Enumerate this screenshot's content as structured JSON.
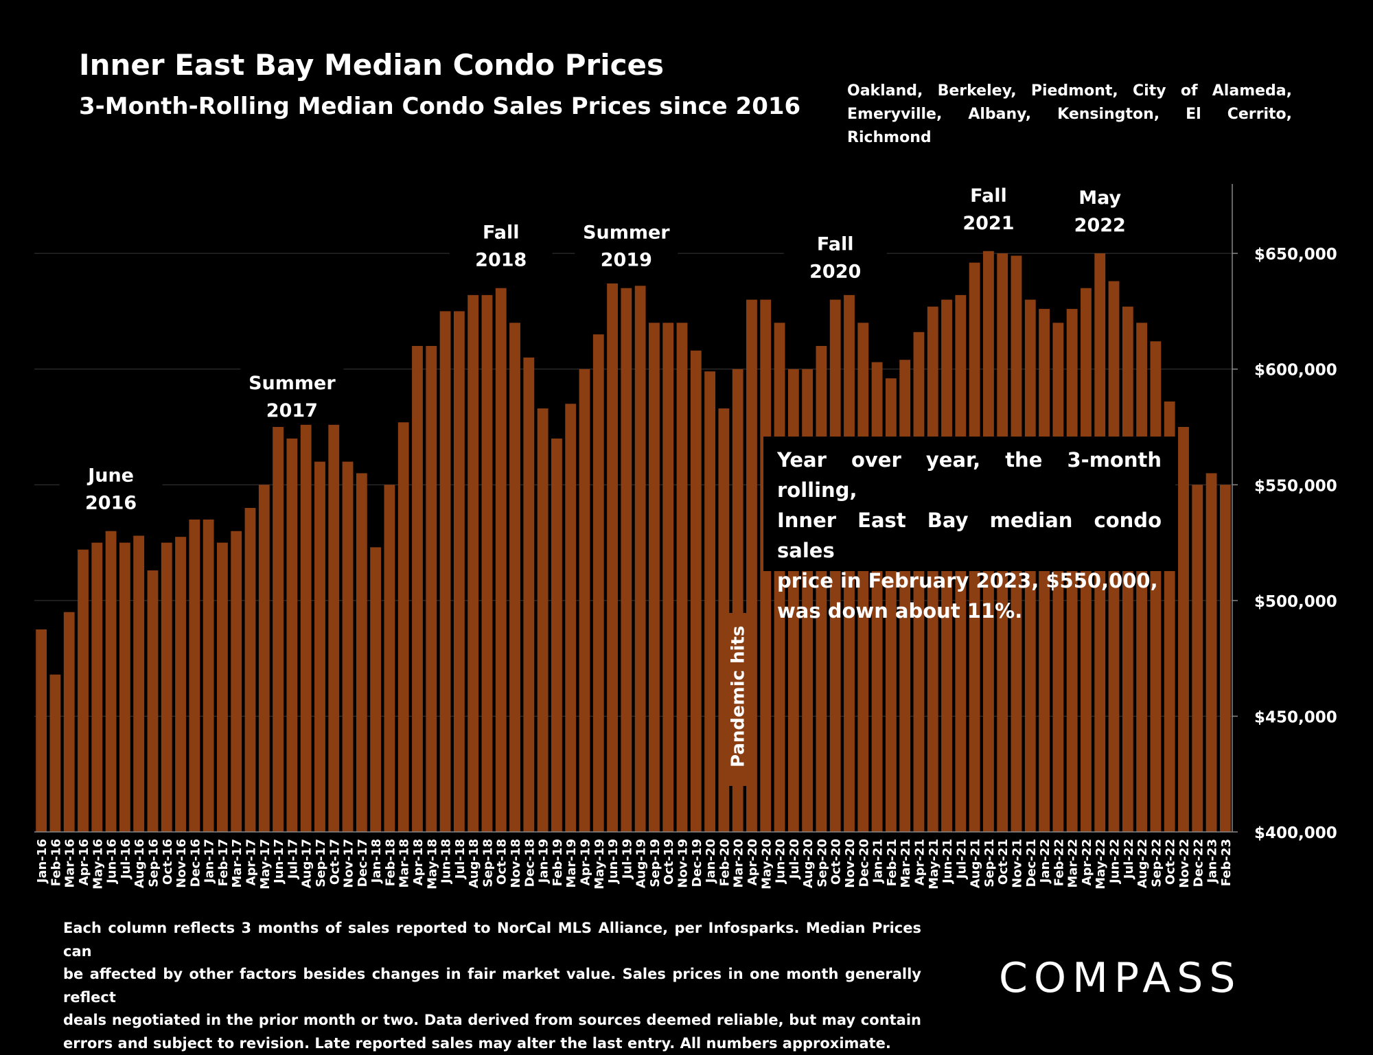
{
  "header": {
    "title": "Inner East Bay Median Condo Prices",
    "subtitle": "3-Month-Rolling Median Condo Sales Prices since 2016",
    "cities_line1": "Oakland, Berkeley, Piedmont, City of Alameda,",
    "cities_line2": "Emeryville, Albany, Kensington, El Cerrito, Richmond"
  },
  "callout": {
    "line1": "Year over year, the 3-month rolling,",
    "line2": "Inner East Bay median condo sales",
    "line3": "price in February 2023, $550,000,",
    "line4": "was down about 11%."
  },
  "footnote": {
    "line1": "Each column reflects 3 months of sales reported to NorCal MLS Alliance, per Infosparks. Median Prices can",
    "line2": "be affected by other factors besides changes in fair market value. Sales prices in one month generally reflect",
    "line3": "deals negotiated in the prior month or two. Data derived from sources deemed reliable, but may contain",
    "line4": "errors and subject to revision. Late reported sales may alter the last entry. All numbers approximate."
  },
  "logo": {
    "text": "COMPASS"
  },
  "colors": {
    "bar": "#8B3E12",
    "background": "#000000",
    "text": "#FFFFFF",
    "grid": "#3a3a3a"
  },
  "chart_data": {
    "type": "bar",
    "ylim": [
      400000,
      680000
    ],
    "yticks": [
      400000,
      450000,
      500000,
      550000,
      600000,
      650000
    ],
    "ytick_labels": [
      "$400,000",
      "$450,000",
      "$500,000",
      "$550,000",
      "$600,000",
      "$650,000"
    ],
    "grid": true,
    "categories": [
      "Jan-16",
      "Feb-16",
      "Mar-16",
      "Apr-16",
      "May-16",
      "Jun-16",
      "Jul-16",
      "Aug-16",
      "Sep-16",
      "Oct-16",
      "Nov-16",
      "Dec-16",
      "Jan-17",
      "Feb-17",
      "Mar-17",
      "Apr-17",
      "May-17",
      "Jun-17",
      "Jul-17",
      "Aug-17",
      "Sep-17",
      "Oct-17",
      "Nov-17",
      "Dec-17",
      "Jan-18",
      "Feb-18",
      "Mar-18",
      "Apr-18",
      "May-18",
      "Jun-18",
      "Jul-18",
      "Aug-18",
      "Sep-18",
      "Oct-18",
      "Nov-18",
      "Dec-18",
      "Jan-19",
      "Feb-19",
      "Mar-19",
      "Apr-19",
      "May-19",
      "Jun-19",
      "Jul-19",
      "Aug-19",
      "Sep-19",
      "Oct-19",
      "Nov-19",
      "Dec-19",
      "Jan-20",
      "Feb-20",
      "Mar-20",
      "Apr-20",
      "May-20",
      "Jun-20",
      "Jul-20",
      "Aug-20",
      "Sep-20",
      "Oct-20",
      "Nov-20",
      "Dec-20",
      "Jan-21",
      "Feb-21",
      "Mar-21",
      "Apr-21",
      "May-21",
      "Jun-21",
      "Jul-21",
      "Aug-21",
      "Sep-21",
      "Oct-21",
      "Nov-21",
      "Dec-21",
      "Jan-22",
      "Feb-22",
      "Mar-22",
      "Apr-22",
      "May-22",
      "Jun-22",
      "Jul-22",
      "Aug-22",
      "Sep-22",
      "Oct-22",
      "Nov-22",
      "Dec-22",
      "Jan-23",
      "Feb-23"
    ],
    "values": [
      487500,
      468000,
      495000,
      522000,
      525000,
      530000,
      525000,
      528000,
      513000,
      525000,
      527500,
      535000,
      535000,
      525000,
      530000,
      540000,
      550000,
      575000,
      570000,
      580000,
      560000,
      579000,
      560000,
      555000,
      523000,
      550000,
      577000,
      610000,
      610000,
      625000,
      625000,
      632000,
      632000,
      635000,
      620000,
      605000,
      583000,
      570000,
      585000,
      600000,
      615000,
      637000,
      635000,
      636000,
      620000,
      620000,
      620000,
      608000,
      599000,
      583000,
      600000,
      630000,
      630000,
      620000,
      600000,
      600000,
      610000,
      630000,
      632000,
      620000,
      603000,
      596000,
      604000,
      616000,
      627000,
      630000,
      632000,
      646000,
      651000,
      650000,
      649000,
      630000,
      626000,
      620000,
      626000,
      635000,
      650000,
      638000,
      627000,
      620000,
      612000,
      586000,
      575000,
      550000,
      555000,
      550000
    ],
    "annotations": [
      {
        "line1": "June",
        "line2": "2016",
        "category": "Jun-16"
      },
      {
        "line1": "Summer",
        "line2": "2017",
        "category": "Jul-17"
      },
      {
        "line1": "Fall",
        "line2": "2018",
        "category": "Oct-18"
      },
      {
        "line1": "Summer",
        "line2": "2019",
        "category": "Jul-19"
      },
      {
        "line1": "Fall",
        "line2": "2020",
        "category": "Oct-20"
      },
      {
        "line1": "Fall",
        "line2": "2021",
        "category": "Sep-21"
      },
      {
        "line1": "May",
        "line2": "2022",
        "category": "May-22"
      }
    ],
    "event_label": {
      "text": "Pandemic hits",
      "category": "Mar-20"
    }
  }
}
